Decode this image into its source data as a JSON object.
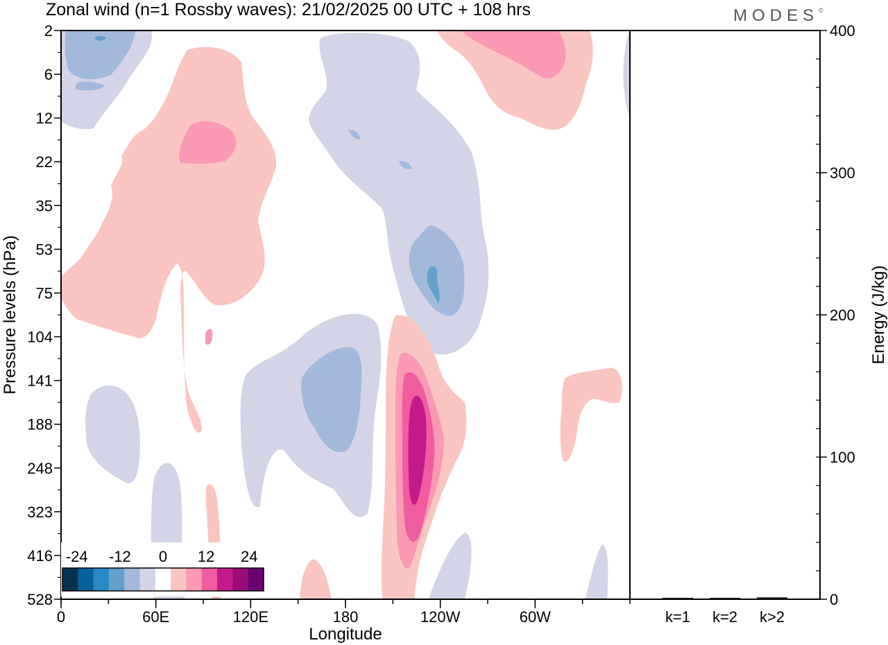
{
  "title": "Zonal wind (n=1 Rossby waves):  21/02/2025  00 UTC  + 108 hrs",
  "brand": "MODES",
  "brand_mark": "©",
  "chart_data": [
    {
      "type": "heatmap",
      "xlabel": "Longitude",
      "ylabel": "Pressure levels (hPa)",
      "x_ticks": [
        "0",
        "60E",
        "120E",
        "180",
        "120W",
        "60W"
      ],
      "x_tick_values_deg": [
        0,
        60,
        120,
        180,
        240,
        300
      ],
      "xlim_deg": [
        0,
        360
      ],
      "y_ticks": [
        "2",
        "6",
        "12",
        "22",
        "35",
        "53",
        "75",
        "104",
        "141",
        "188",
        "248",
        "323",
        "416",
        "528"
      ],
      "y_scale": "pressure levels (equally spaced, top = 2 hPa, bottom = 528 hPa)",
      "colorbar": {
        "labels": [
          "-24",
          "-12",
          "0",
          "12",
          "24"
        ],
        "label_values": [
          -24,
          -12,
          0,
          12,
          24
        ],
        "levels": [
          -28,
          -24,
          -20,
          -16,
          -12,
          -8,
          -4,
          4,
          8,
          12,
          16,
          20,
          24,
          28
        ],
        "colors": [
          "#06324f",
          "#08629a",
          "#2a88c5",
          "#63a0cc",
          "#a3b9d9",
          "#d3d4e7",
          "#ffffff",
          "#fac5c0",
          "#f999b3",
          "#ef5c9f",
          "#c51a8b",
          "#9b0a79",
          "#6b0273"
        ],
        "zero_color": "#ffffff"
      },
      "colors": {
        "neg_weak": "#d3d4e7",
        "neg_mid": "#a3b9d9",
        "neg_strong": "#63a0cc",
        "pos_weak": "#fac5c0",
        "pos_mid": "#f999b3",
        "pos_strong": "#ef5c9f",
        "pos_max": "#c51a8b"
      },
      "grid": false
    },
    {
      "type": "bar",
      "ylabel": "Energy (J/kg)",
      "categories": [
        "k=1",
        "k=2",
        "k>2"
      ],
      "values": [
        0.5,
        0.5,
        0.8
      ],
      "ylim": [
        0,
        400
      ],
      "y_ticks": [
        "0",
        "100",
        "200",
        "300",
        "400"
      ],
      "y_tick_values": [
        0,
        100,
        200,
        300,
        400
      ]
    }
  ]
}
